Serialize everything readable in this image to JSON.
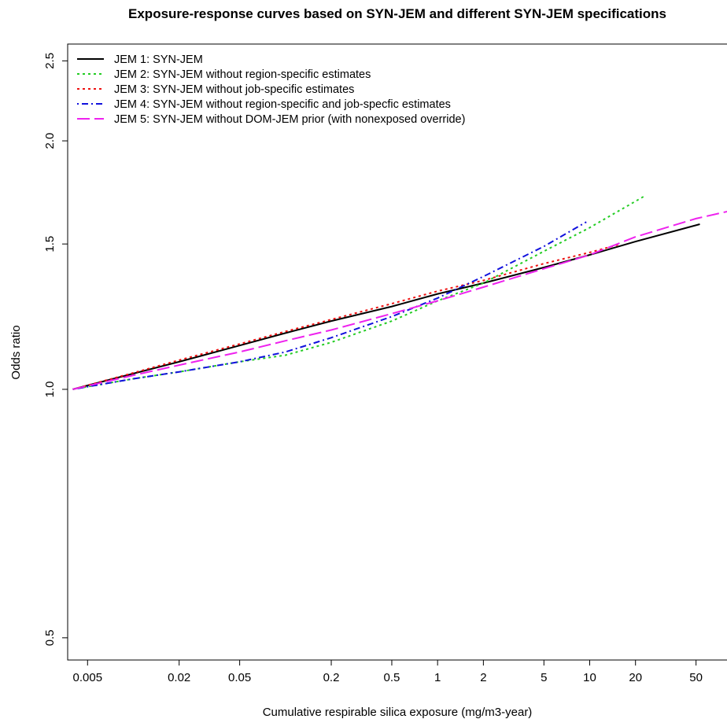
{
  "chart_data": {
    "type": "line",
    "title": "Exposure-response curves based on SYN-JEM and different SYN-JEM specifications",
    "xlabel": "Cumulative respirable silica exposure (mg/m3-year)",
    "ylabel": "Odds ratio",
    "x_scale": "log",
    "y_scale": "log",
    "xlim": [
      0.0037,
      90
    ],
    "ylim": [
      0.47,
      2.62
    ],
    "x_ticks": [
      0.005,
      0.02,
      0.05,
      0.2,
      0.5,
      1,
      2,
      5,
      10,
      20,
      50
    ],
    "x_tick_labels": [
      "0.005",
      "0.02",
      "0.05",
      "0.2",
      "0.5",
      "1",
      "2",
      "5",
      "10",
      "20",
      "50"
    ],
    "y_ticks": [
      0.5,
      1.0,
      1.5,
      2.0,
      2.5
    ],
    "y_tick_labels": [
      "0.5",
      "1.0",
      "1.5",
      "2.0",
      "2.5"
    ],
    "grid": false,
    "legend_position": "top-left",
    "series": [
      {
        "name": "JEM 1: SYN-JEM",
        "color": "#000000",
        "dash": "solid",
        "points": [
          [
            0.004,
            1.0
          ],
          [
            0.01,
            1.045
          ],
          [
            0.02,
            1.08
          ],
          [
            0.05,
            1.13
          ],
          [
            0.1,
            1.17
          ],
          [
            0.2,
            1.21
          ],
          [
            0.5,
            1.26
          ],
          [
            1,
            1.305
          ],
          [
            2,
            1.345
          ],
          [
            5,
            1.405
          ],
          [
            10,
            1.455
          ],
          [
            20,
            1.51
          ],
          [
            53,
            1.585
          ]
        ]
      },
      {
        "name": "JEM 2: SYN-JEM without region-specific estimates",
        "color": "#22cc22",
        "dash": "dotted",
        "points": [
          [
            0.004,
            1.0
          ],
          [
            0.01,
            1.03
          ],
          [
            0.02,
            1.05
          ],
          [
            0.05,
            1.08
          ],
          [
            0.1,
            1.1
          ],
          [
            0.2,
            1.14
          ],
          [
            0.5,
            1.21
          ],
          [
            1,
            1.28
          ],
          [
            2,
            1.345
          ],
          [
            5,
            1.47
          ],
          [
            10,
            1.57
          ],
          [
            23,
            1.715
          ]
        ]
      },
      {
        "name": "JEM 3: SYN-JEM without job-specific estimates",
        "color": "#ee1111",
        "dash": "dotted",
        "points": [
          [
            0.004,
            1.0
          ],
          [
            0.01,
            1.047
          ],
          [
            0.02,
            1.085
          ],
          [
            0.05,
            1.135
          ],
          [
            0.1,
            1.175
          ],
          [
            0.2,
            1.215
          ],
          [
            0.5,
            1.27
          ],
          [
            1,
            1.315
          ],
          [
            2,
            1.355
          ],
          [
            5,
            1.42
          ],
          [
            10,
            1.465
          ],
          [
            16,
            1.5
          ]
        ]
      },
      {
        "name": "JEM 4: SYN-JEM without region-specific and job-specfic estimates",
        "color": "#1111dd",
        "dash": "dashdot",
        "points": [
          [
            0.004,
            1.0
          ],
          [
            0.01,
            1.03
          ],
          [
            0.02,
            1.05
          ],
          [
            0.05,
            1.08
          ],
          [
            0.1,
            1.11
          ],
          [
            0.2,
            1.155
          ],
          [
            0.5,
            1.225
          ],
          [
            1,
            1.29
          ],
          [
            2,
            1.37
          ],
          [
            5,
            1.49
          ],
          [
            9.5,
            1.595
          ]
        ]
      },
      {
        "name": "JEM 5: SYN-JEM without DOM-JEM prior (with nonexposed override)",
        "color": "#ee22ee",
        "dash": "longdash",
        "points": [
          [
            0.004,
            1.0
          ],
          [
            0.01,
            1.04
          ],
          [
            0.02,
            1.07
          ],
          [
            0.05,
            1.11
          ],
          [
            0.1,
            1.145
          ],
          [
            0.2,
            1.18
          ],
          [
            0.5,
            1.235
          ],
          [
            1,
            1.28
          ],
          [
            2,
            1.33
          ],
          [
            5,
            1.4
          ],
          [
            10,
            1.455
          ],
          [
            20,
            1.53
          ],
          [
            50,
            1.61
          ],
          [
            90,
            1.65
          ]
        ]
      }
    ]
  }
}
